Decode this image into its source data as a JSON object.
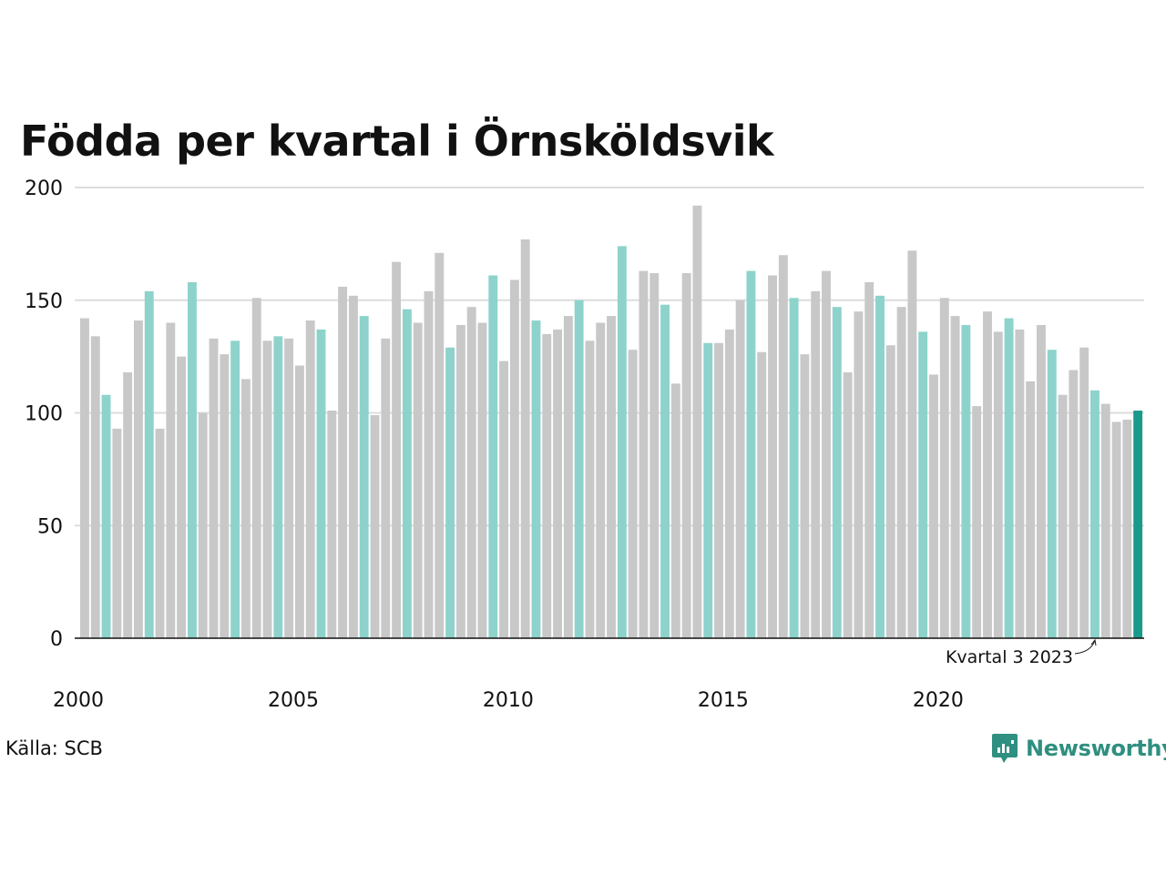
{
  "title": "Födda per kvartal i Örnsköldsvik",
  "source": "Källa: SCB",
  "brand": "Newsworthy",
  "colors": {
    "gray": "#c8c8c8",
    "teal": "#8dd3cb",
    "highlight": "#1a9a8a",
    "brand": "#2f8f80",
    "grid": "#dddddd"
  },
  "chart_data": {
    "type": "bar",
    "title": "Födda per kvartal i Örnsköldsvik",
    "xlabel": "",
    "ylabel": "",
    "ylim": [
      0,
      200
    ],
    "yticks": [
      0,
      50,
      100,
      150,
      200
    ],
    "xtick_labels": [
      "2000",
      "2005",
      "2010",
      "2015",
      "2020"
    ],
    "start": "2000 Q1",
    "grid": true,
    "values": [
      142,
      134,
      108,
      93,
      118,
      141,
      154,
      93,
      140,
      125,
      158,
      100,
      133,
      126,
      132,
      115,
      151,
      132,
      134,
      133,
      121,
      141,
      137,
      101,
      156,
      152,
      143,
      99,
      133,
      167,
      146,
      140,
      154,
      171,
      129,
      139,
      147,
      140,
      161,
      123,
      159,
      177,
      141,
      135,
      137,
      143,
      150,
      132,
      140,
      143,
      174,
      128,
      163,
      162,
      148,
      113,
      162,
      192,
      131,
      131,
      137,
      150,
      163,
      127,
      161,
      170,
      151,
      126,
      154,
      163,
      147,
      118,
      145,
      158,
      152,
      130,
      147,
      172,
      136,
      117,
      151,
      143,
      139,
      103,
      145,
      136,
      142,
      137,
      114,
      139,
      128,
      108,
      119,
      129,
      110,
      104,
      96,
      97,
      101
    ],
    "annotation": {
      "label": "Kvartal 3 2023",
      "index": 94
    }
  }
}
